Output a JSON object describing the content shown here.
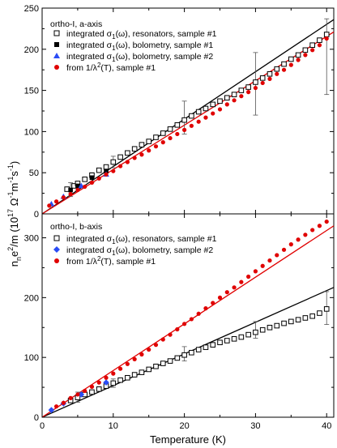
{
  "chart_data": [
    {
      "type": "scatter",
      "title": "ortho-I, a-axis",
      "ylabel_text": "n",
      "ylabel_sub": "n",
      "ylabel_rest": "e",
      "ylabel_sup": "2",
      "ylabel_tail": "/m  (10",
      "ylabel_exp": "17",
      "ylabel_units": "Ω",
      "ylabel_units_exp1": "-1",
      "ylabel_units_m": "m",
      "ylabel_units_exp2": "-1",
      "ylabel_units_s": "s",
      "ylabel_units_exp3": "-1",
      "ylabel_close": ")",
      "xlim": [
        0,
        41
      ],
      "ylim": [
        0,
        250
      ],
      "yticks": [
        0,
        50,
        100,
        150,
        200,
        250
      ],
      "legend": [
        {
          "id": "res",
          "prefix": "integrated σ",
          "sub": "1",
          "suffix": "(ω), resonators, sample #1",
          "marker": "open-square",
          "color": "#000000"
        },
        {
          "id": "bol1",
          "prefix": "integrated σ",
          "sub": "1",
          "suffix": "(ω), bolometry, sample #1",
          "marker": "filled-square",
          "color": "#000000"
        },
        {
          "id": "bol2",
          "prefix": "integrated σ",
          "sub": "1",
          "suffix": "(ω), bolometry, sample #2",
          "marker": "triangle",
          "color": "#2a4cf5"
        },
        {
          "id": "lam",
          "prefix": "from 1/λ",
          "sup": "2",
          "suffix": "(T), sample #1",
          "marker": "circle",
          "color": "#e00000"
        }
      ],
      "series": [
        {
          "id": "res",
          "x": [
            3.5,
            4.5,
            5,
            6,
            7,
            8,
            9,
            10,
            11,
            12,
            13,
            14,
            15,
            16,
            17,
            18,
            19,
            20,
            21,
            22,
            23,
            24,
            25,
            26,
            27,
            28,
            29,
            30,
            31,
            32,
            33,
            34,
            35,
            36,
            37,
            38,
            39,
            40
          ],
          "y": [
            30,
            34,
            37,
            42,
            47,
            53,
            57,
            63,
            69,
            74,
            79,
            84,
            88,
            93,
            98,
            103,
            108,
            114,
            119,
            124,
            128,
            133,
            137,
            141,
            145,
            150,
            154,
            160,
            165,
            170,
            176,
            182,
            188,
            193,
            199,
            205,
            211,
            218
          ]
        },
        {
          "id": "bol1",
          "x": [
            4,
            5,
            7,
            9
          ],
          "y": [
            29,
            34,
            44,
            52
          ]
        },
        {
          "id": "bol2",
          "x": [
            1.3,
            3,
            5.5,
            9
          ],
          "y": [
            12,
            21,
            34,
            48
          ]
        },
        {
          "id": "lam",
          "x": [
            1,
            2,
            3,
            4,
            5,
            6,
            7,
            8,
            9,
            10,
            11,
            12,
            13,
            14,
            15,
            16,
            17,
            18,
            19,
            20,
            21,
            22,
            23,
            24,
            25,
            26,
            27,
            28,
            29,
            30,
            31,
            32,
            33,
            34,
            35,
            36,
            37,
            38,
            39,
            40
          ],
          "y": [
            10,
            15,
            20,
            24,
            29,
            33,
            38,
            43,
            48,
            52,
            58,
            63,
            68,
            72,
            77,
            82,
            87,
            92,
            97,
            102,
            107,
            112,
            117,
            122,
            127,
            133,
            138,
            143,
            148,
            153,
            159,
            164,
            170,
            175,
            181,
            187,
            193,
            199,
            205,
            213
          ]
        }
      ],
      "fits": [
        {
          "color": "#000000",
          "x": [
            0,
            41
          ],
          "y": [
            0,
            236
          ]
        },
        {
          "color": "#e00000",
          "x": [
            0,
            41
          ],
          "y": [
            0,
            221
          ]
        }
      ],
      "errorbars": [
        {
          "x": 4,
          "y": 30,
          "lo": 21,
          "hi": 38
        },
        {
          "x": 7,
          "y": 44,
          "lo": 38,
          "hi": 50
        },
        {
          "x": 10,
          "y": 63,
          "lo": 56,
          "hi": 70
        },
        {
          "x": 20,
          "y": 114,
          "lo": 97,
          "hi": 137
        },
        {
          "x": 30,
          "y": 160,
          "lo": 120,
          "hi": 196
        },
        {
          "x": 40,
          "y": 218,
          "lo": 145,
          "hi": 237
        }
      ]
    },
    {
      "type": "scatter",
      "title": "ortho-I, b-axis",
      "xlabel": "Temperature (K)",
      "xlim": [
        0,
        41
      ],
      "ylim": [
        0,
        340
      ],
      "xticks": [
        0,
        10,
        20,
        30,
        40
      ],
      "yticks": [
        0,
        100,
        200,
        300
      ],
      "legend": [
        {
          "id": "res",
          "prefix": "integrated σ",
          "sub": "1",
          "suffix": "(ω), resonators, sample #1",
          "marker": "open-square",
          "color": "#000000"
        },
        {
          "id": "bol2",
          "prefix": "integrated σ",
          "sub": "1",
          "suffix": "(ω), bolometry, sample #2",
          "marker": "diamond",
          "color": "#2a4cf5"
        },
        {
          "id": "lam",
          "prefix": "from 1/λ",
          "sup": "2",
          "suffix": "(T), sample #1",
          "marker": "circle",
          "color": "#e00000"
        }
      ],
      "series": [
        {
          "id": "res",
          "x": [
            4,
            5,
            6,
            7,
            8,
            9,
            10,
            11,
            12,
            13,
            14,
            15,
            16,
            17,
            18,
            19,
            20,
            21,
            22,
            23,
            24,
            25,
            26,
            27,
            28,
            29,
            30,
            31,
            32,
            33,
            34,
            35,
            36,
            37,
            38,
            39,
            40
          ],
          "y": [
            28,
            33,
            38,
            42,
            47,
            52,
            57,
            62,
            66,
            71,
            75,
            80,
            85,
            90,
            94,
            99,
            104,
            108,
            113,
            117,
            121,
            125,
            128,
            131,
            134,
            138,
            142,
            146,
            150,
            153,
            157,
            160,
            163,
            166,
            169,
            174,
            181
          ]
        },
        {
          "id": "bol2",
          "x": [
            1.3,
            3,
            5.5,
            9
          ],
          "y": [
            12,
            23,
            38,
            58
          ]
        },
        {
          "id": "lam",
          "x": [
            2,
            3,
            4,
            5,
            6,
            7,
            8,
            9,
            10,
            11,
            12,
            13,
            14,
            15,
            16,
            17,
            18,
            19,
            20,
            21,
            22,
            23,
            24,
            25,
            26,
            27,
            28,
            29,
            30,
            31,
            32,
            33,
            34,
            35,
            36,
            37,
            38,
            39,
            40
          ],
          "y": [
            18,
            24,
            32,
            38,
            44,
            51,
            58,
            66,
            73,
            81,
            89,
            97,
            105,
            113,
            121,
            130,
            138,
            147,
            156,
            164,
            173,
            182,
            191,
            200,
            209,
            217,
            226,
            235,
            244,
            253,
            262,
            271,
            280,
            289,
            297,
            305,
            313,
            320,
            327
          ]
        }
      ],
      "fits": [
        {
          "color": "#000000",
          "x": [
            0,
            41
          ],
          "y": [
            0,
            217
          ]
        },
        {
          "color": "#e00000",
          "x": [
            0,
            41
          ],
          "y": [
            0,
            320
          ]
        }
      ],
      "errorbars": [
        {
          "x": 5,
          "y": 33,
          "lo": 25,
          "hi": 42
        },
        {
          "x": 10,
          "y": 57,
          "lo": 50,
          "hi": 64
        },
        {
          "x": 20,
          "y": 104,
          "lo": 94,
          "hi": 118
        },
        {
          "x": 30,
          "y": 142,
          "lo": 132,
          "hi": 160
        },
        {
          "x": 40,
          "y": 181,
          "lo": 155,
          "hi": 210
        }
      ]
    }
  ]
}
